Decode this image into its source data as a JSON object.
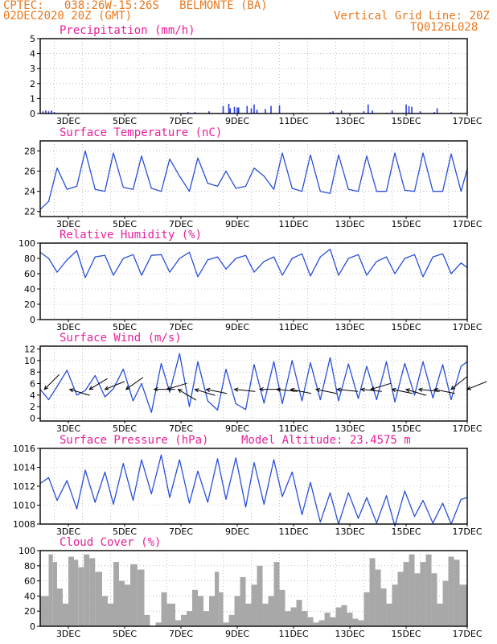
{
  "header": {
    "line1_left": "CPTEC:   038:26W-15:26S   BELMONTE (BA)",
    "line2_left": "02DEC2020 20Z (GMT)",
    "line1_right": "Vertical Grid Line: 20Z",
    "line2_right": "TQ0126L028"
  },
  "colors": {
    "header": "#e8781e",
    "panel_title": "#e8209c",
    "line": "#2a4fd8",
    "bar": "#2a3fe0",
    "cloud": "#a8a8a8",
    "arrow": "#000000"
  },
  "chart_data": [
    {
      "type": "bar",
      "title": "Precipitation (mm/h)",
      "ylim": [
        0,
        5
      ],
      "yticks": [
        0,
        1,
        2,
        3,
        4,
        5
      ],
      "xlim": [
        0,
        15.17
      ],
      "xticks": [
        "3DEC",
        "5DEC",
        "7DEC",
        "9DEC",
        "11DEC",
        "13DEC",
        "15DEC",
        "17DEC"
      ],
      "grid": true,
      "x": [
        0.1,
        0.2,
        0.3,
        0.4,
        0.5,
        5.25,
        5.5,
        6.0,
        6.5,
        6.7,
        6.75,
        6.9,
        7.0,
        7.05,
        7.35,
        7.5,
        7.6,
        7.7,
        8.0,
        8.2,
        8.5,
        9.3,
        10.3,
        10.4,
        10.6,
        10.7,
        11.3,
        11.5,
        11.65,
        11.8,
        12.3,
        12.5,
        12.9,
        13.0,
        13.1,
        13.2,
        13.5,
        14.0,
        14.1,
        14.6
      ],
      "values": [
        0.15,
        0.2,
        0.15,
        0.2,
        0.1,
        0.1,
        0.1,
        0.15,
        0.5,
        0.65,
        0.35,
        0.45,
        0.4,
        0.4,
        0.5,
        0.35,
        0.6,
        0.25,
        0.3,
        0.5,
        0.55,
        0.05,
        0.1,
        0.15,
        0.05,
        0.2,
        0.05,
        0.15,
        0.6,
        0.2,
        0.05,
        0.2,
        0.05,
        0.6,
        0.5,
        0.45,
        0.15,
        0.1,
        0.35,
        0.1
      ]
    },
    {
      "type": "line",
      "title": "Surface Temperature (nC)",
      "ylim": [
        21.5,
        29
      ],
      "yticks": [
        22,
        24,
        26,
        28
      ],
      "xlim": [
        0,
        15.17
      ],
      "xticks": [
        "3DEC",
        "5DEC",
        "7DEC",
        "9DEC",
        "11DEC",
        "13DEC",
        "15DEC",
        "17DEC"
      ],
      "grid": true,
      "x": [
        0.0,
        0.3,
        0.6,
        0.95,
        1.3,
        1.6,
        1.95,
        2.3,
        2.6,
        2.95,
        3.3,
        3.6,
        3.95,
        4.3,
        4.6,
        4.95,
        5.3,
        5.6,
        5.95,
        6.3,
        6.6,
        6.95,
        7.3,
        7.6,
        7.95,
        8.3,
        8.6,
        8.95,
        9.3,
        9.6,
        9.95,
        10.3,
        10.6,
        10.95,
        11.3,
        11.6,
        11.95,
        12.3,
        12.6,
        12.95,
        13.3,
        13.6,
        13.95,
        14.3,
        14.6,
        14.95,
        15.17
      ],
      "values": [
        22.2,
        23.0,
        26.3,
        24.2,
        24.5,
        28.0,
        24.2,
        24.0,
        27.8,
        24.4,
        24.2,
        27.5,
        24.3,
        24.0,
        27.2,
        25.5,
        24.0,
        27.3,
        24.8,
        24.5,
        26.0,
        24.3,
        24.5,
        26.3,
        25.5,
        24.2,
        27.8,
        24.3,
        24.0,
        27.6,
        24.0,
        23.8,
        27.6,
        24.2,
        24.0,
        27.5,
        24.0,
        24.0,
        27.8,
        24.1,
        24.0,
        27.8,
        24.0,
        24.0,
        27.7,
        24.0,
        26.2
      ]
    },
    {
      "type": "line",
      "title": "Relative Humidity (%)",
      "ylim": [
        0,
        100
      ],
      "yticks": [
        0,
        20,
        40,
        60,
        80,
        100
      ],
      "xlim": [
        0,
        15.17
      ],
      "xticks": [
        "3DEC",
        "5DEC",
        "7DEC",
        "9DEC",
        "11DEC",
        "13DEC",
        "15DEC",
        "17DEC"
      ],
      "grid": true,
      "x": [
        0.0,
        0.3,
        0.6,
        0.95,
        1.3,
        1.6,
        1.95,
        2.3,
        2.6,
        2.95,
        3.3,
        3.6,
        3.95,
        4.3,
        4.6,
        4.95,
        5.3,
        5.6,
        5.95,
        6.3,
        6.6,
        6.95,
        7.3,
        7.6,
        7.95,
        8.3,
        8.6,
        8.95,
        9.3,
        9.6,
        9.95,
        10.3,
        10.6,
        10.95,
        11.3,
        11.6,
        11.95,
        12.3,
        12.6,
        12.95,
        13.3,
        13.6,
        13.95,
        14.3,
        14.6,
        14.95,
        15.17
      ],
      "values": [
        88,
        80,
        62,
        78,
        90,
        55,
        82,
        84,
        58,
        80,
        85,
        58,
        84,
        85,
        62,
        80,
        88,
        56,
        78,
        82,
        66,
        80,
        84,
        62,
        76,
        82,
        58,
        80,
        86,
        57,
        82,
        92,
        58,
        80,
        85,
        58,
        76,
        82,
        60,
        80,
        85,
        56,
        82,
        86,
        60,
        74,
        68
      ]
    },
    {
      "type": "line",
      "title": "Surface Wind (m/s)",
      "ylim": [
        -0.5,
        12.5
      ],
      "yticks": [
        0,
        2,
        4,
        6,
        8,
        10,
        12
      ],
      "xlim": [
        0,
        15.17
      ],
      "xticks": [
        "3DEC",
        "5DEC",
        "7DEC",
        "9DEC",
        "11DEC",
        "13DEC",
        "15DEC",
        "17DEC"
      ],
      "grid": true,
      "x": [
        0.0,
        0.3,
        0.6,
        0.95,
        1.3,
        1.6,
        1.95,
        2.3,
        2.6,
        2.95,
        3.3,
        3.6,
        3.95,
        4.3,
        4.6,
        4.95,
        5.3,
        5.6,
        5.95,
        6.3,
        6.6,
        6.95,
        7.3,
        7.6,
        7.95,
        8.3,
        8.6,
        8.95,
        9.3,
        9.6,
        9.95,
        10.3,
        10.6,
        10.95,
        11.3,
        11.6,
        11.95,
        12.3,
        12.6,
        12.95,
        13.3,
        13.6,
        13.95,
        14.3,
        14.6,
        14.95,
        15.17
      ],
      "values": [
        5.0,
        3.2,
        5.5,
        8.3,
        4.0,
        4.8,
        7.4,
        3.7,
        5.1,
        8.5,
        3.0,
        6.0,
        1.0,
        9.5,
        4.5,
        11.2,
        2.0,
        9.8,
        3.0,
        1.4,
        8.5,
        2.5,
        1.5,
        9.3,
        2.6,
        9.8,
        2.5,
        10.0,
        3.0,
        9.6,
        3.2,
        10.5,
        3.0,
        9.4,
        3.4,
        9.0,
        3.2,
        9.8,
        2.8,
        9.5,
        4.0,
        9.8,
        3.5,
        9.3,
        3.2,
        9.0,
        9.8
      ],
      "wind_vectors": [
        {
          "x": 0.15,
          "u": -1,
          "v": -1
        },
        {
          "x": 1.05,
          "u": -1,
          "v": 0.3
        },
        {
          "x": 1.75,
          "u": -1,
          "v": -0.6
        },
        {
          "x": 2.3,
          "u": -1,
          "v": -0.4
        },
        {
          "x": 3.05,
          "u": -1,
          "v": -0.7
        },
        {
          "x": 4.05,
          "u": -1,
          "v": 0.0
        },
        {
          "x": 4.5,
          "u": -1,
          "v": -0.3
        },
        {
          "x": 4.9,
          "u": -1,
          "v": 0.6
        },
        {
          "x": 5.5,
          "u": -1,
          "v": 0.3
        },
        {
          "x": 5.9,
          "u": -1,
          "v": 0.2
        },
        {
          "x": 6.9,
          "u": -1,
          "v": 0.1
        },
        {
          "x": 7.8,
          "u": -1,
          "v": 0.0
        },
        {
          "x": 8.4,
          "u": -1,
          "v": 0.1
        },
        {
          "x": 8.9,
          "u": -1,
          "v": 0.2
        },
        {
          "x": 9.8,
          "u": -1,
          "v": 0.2
        },
        {
          "x": 10.55,
          "u": -1,
          "v": 0.1
        },
        {
          "x": 11.4,
          "u": -1,
          "v": 0.1
        },
        {
          "x": 11.75,
          "u": -1,
          "v": -0.3
        },
        {
          "x": 12.5,
          "u": -1,
          "v": 0.2
        },
        {
          "x": 13.0,
          "u": -1,
          "v": 0.3
        },
        {
          "x": 13.45,
          "u": -1,
          "v": 0.1
        },
        {
          "x": 14.0,
          "u": -1,
          "v": 0.2
        },
        {
          "x": 14.6,
          "u": -1,
          "v": -0.8
        },
        {
          "x": 15.17,
          "u": -1,
          "v": -0.4
        }
      ]
    },
    {
      "type": "line",
      "title": "Surface Pressure (hPa)",
      "annotation": "Model Altitude: 23.4575 m",
      "ylim": [
        1008,
        1016
      ],
      "yticks": [
        1008,
        1010,
        1012,
        1014,
        1016
      ],
      "xlim": [
        0,
        15.17
      ],
      "xticks": [
        "3DEC",
        "5DEC",
        "7DEC",
        "9DEC",
        "11DEC",
        "13DEC",
        "15DEC",
        "17DEC"
      ],
      "grid": true,
      "x": [
        0.0,
        0.3,
        0.6,
        0.95,
        1.3,
        1.6,
        1.95,
        2.3,
        2.6,
        2.95,
        3.3,
        3.6,
        3.95,
        4.3,
        4.6,
        4.95,
        5.3,
        5.6,
        5.95,
        6.3,
        6.6,
        6.95,
        7.3,
        7.6,
        7.95,
        8.3,
        8.6,
        8.95,
        9.3,
        9.6,
        9.95,
        10.3,
        10.6,
        10.95,
        11.3,
        11.6,
        11.95,
        12.3,
        12.6,
        12.95,
        13.3,
        13.6,
        13.95,
        14.3,
        14.6,
        14.95,
        15.17
      ],
      "values": [
        1012.3,
        1012.9,
        1010.5,
        1012.6,
        1009.6,
        1013.7,
        1010.3,
        1013.5,
        1010.1,
        1014.4,
        1010.5,
        1014.8,
        1011.2,
        1015.3,
        1010.8,
        1014.8,
        1010.2,
        1013.6,
        1010.3,
        1014.9,
        1010.6,
        1015.0,
        1009.8,
        1014.5,
        1010.1,
        1014.8,
        1010.9,
        1013.5,
        1009.0,
        1012.4,
        1008.2,
        1011.3,
        1008.0,
        1011.3,
        1008.6,
        1010.8,
        1008.1,
        1011.0,
        1007.8,
        1011.5,
        1008.8,
        1010.5,
        1008.1,
        1010.2,
        1008.0,
        1010.6,
        1010.8
      ]
    },
    {
      "type": "area",
      "title": "Cloud Cover (%)",
      "ylim": [
        0,
        100
      ],
      "yticks": [
        0,
        20,
        40,
        60,
        80,
        100
      ],
      "xlim": [
        0,
        15.17
      ],
      "xticks": [
        "3DEC",
        "5DEC",
        "7DEC",
        "9DEC",
        "11DEC",
        "13DEC",
        "15DEC",
        "17DEC"
      ],
      "grid": true,
      "x": [
        0.0,
        0.3,
        0.45,
        0.6,
        0.8,
        1.0,
        1.2,
        1.35,
        1.55,
        1.75,
        1.95,
        2.2,
        2.4,
        2.6,
        2.8,
        3.0,
        3.2,
        3.45,
        3.7,
        3.9,
        4.1,
        4.3,
        4.5,
        4.8,
        5.0,
        5.2,
        5.4,
        5.6,
        5.8,
        6.0,
        6.2,
        6.35,
        6.5,
        6.7,
        6.9,
        7.1,
        7.3,
        7.5,
        7.7,
        7.9,
        8.1,
        8.3,
        8.5,
        8.7,
        8.9,
        9.1,
        9.3,
        9.5,
        9.7,
        9.9,
        10.1,
        10.3,
        10.5,
        10.7,
        10.9,
        11.1,
        11.3,
        11.5,
        11.7,
        11.9,
        12.1,
        12.3,
        12.5,
        12.7,
        12.9,
        13.1,
        13.3,
        13.5,
        13.7,
        13.9,
        14.1,
        14.3,
        14.5,
        14.7,
        14.9,
        15.17
      ],
      "values": [
        40,
        95,
        85,
        50,
        30,
        92,
        88,
        78,
        95,
        90,
        72,
        40,
        30,
        85,
        60,
        55,
        82,
        75,
        15,
        0,
        5,
        45,
        30,
        8,
        15,
        20,
        48,
        40,
        20,
        40,
        72,
        45,
        5,
        15,
        40,
        65,
        30,
        55,
        80,
        30,
        40,
        85,
        48,
        20,
        25,
        35,
        20,
        12,
        5,
        8,
        18,
        12,
        25,
        28,
        18,
        10,
        8,
        45,
        90,
        75,
        50,
        30,
        55,
        72,
        85,
        95,
        70,
        85,
        95,
        70,
        30,
        60,
        92,
        88,
        55,
        95
      ]
    }
  ]
}
